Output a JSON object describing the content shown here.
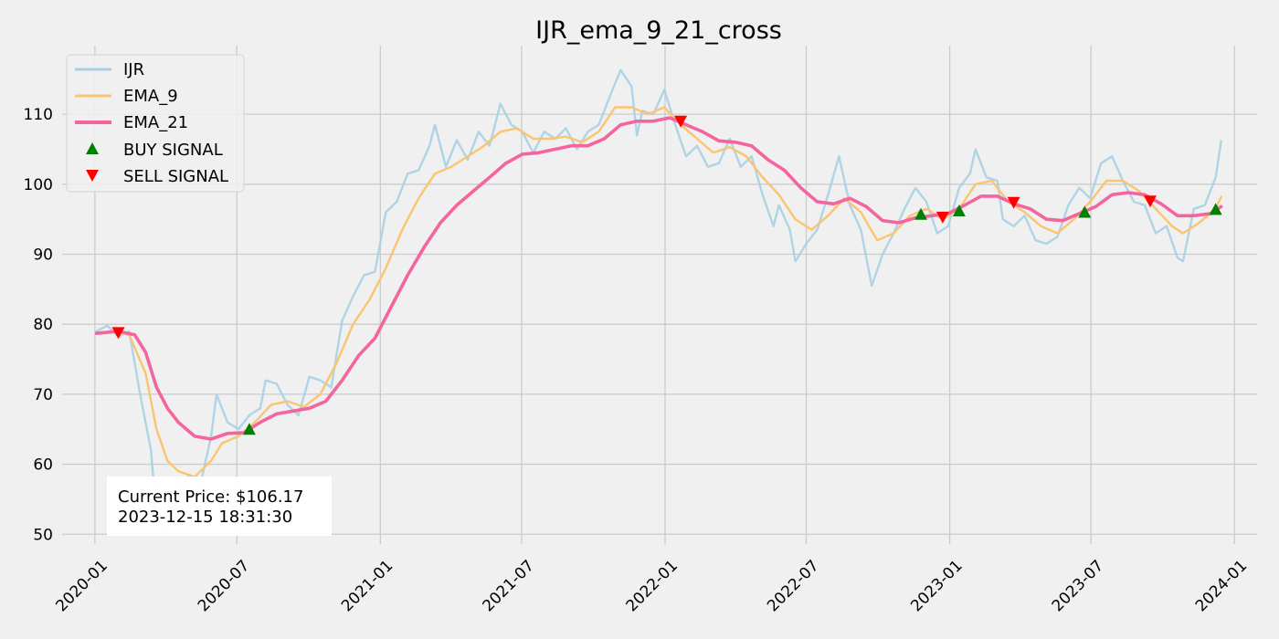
{
  "colors": {
    "background": "#f0f0f0",
    "grid": "#cbcbcb",
    "price": "#a6d0e4",
    "ema_short": "#fbc470",
    "ema_long": "#f4649e",
    "buy": "#008000",
    "sell": "#ff0000"
  },
  "chart_data": {
    "type": "line",
    "title": "IJR_ema_9_21_cross",
    "xlabel": "",
    "ylabel": "",
    "xlim": [
      "2019-11-20",
      "2024-01-30"
    ],
    "ylim": [
      48.6,
      119.8
    ],
    "x_ticks": [
      "2020-01",
      "2020-07",
      "2021-01",
      "2021-07",
      "2022-01",
      "2022-07",
      "2023-01",
      "2023-07",
      "2024-01"
    ],
    "y_ticks": [
      50,
      60,
      70,
      80,
      90,
      100,
      110
    ],
    "grid": true,
    "legend_position": "top-left",
    "series": [
      {
        "name": "IJR",
        "key": "price",
        "points": [
          [
            "2020-01-03",
            79.0
          ],
          [
            "2020-01-17",
            79.8
          ],
          [
            "2020-01-31",
            78.2
          ],
          [
            "2020-02-14",
            79.0
          ],
          [
            "2020-02-28",
            70.0
          ],
          [
            "2020-03-13",
            62.0
          ],
          [
            "2020-03-20",
            52.0
          ],
          [
            "2020-04-03",
            50.5
          ],
          [
            "2020-04-17",
            56.0
          ],
          [
            "2020-05-01",
            58.5
          ],
          [
            "2020-05-15",
            57.0
          ],
          [
            "2020-05-29",
            64.0
          ],
          [
            "2020-06-05",
            70.0
          ],
          [
            "2020-06-19",
            66.0
          ],
          [
            "2020-07-03",
            65.0
          ],
          [
            "2020-07-17",
            67.0
          ],
          [
            "2020-07-31",
            68.0
          ],
          [
            "2020-08-07",
            72.0
          ],
          [
            "2020-08-21",
            71.5
          ],
          [
            "2020-09-04",
            68.5
          ],
          [
            "2020-09-18",
            67.0
          ],
          [
            "2020-10-02",
            72.5
          ],
          [
            "2020-10-16",
            72.0
          ],
          [
            "2020-10-30",
            71.0
          ],
          [
            "2020-11-13",
            80.5
          ],
          [
            "2020-11-27",
            84.0
          ],
          [
            "2020-12-11",
            87.0
          ],
          [
            "2020-12-25",
            87.5
          ],
          [
            "2021-01-08",
            96.0
          ],
          [
            "2021-01-22",
            97.5
          ],
          [
            "2021-02-05",
            101.5
          ],
          [
            "2021-02-19",
            102.0
          ],
          [
            "2021-03-05",
            105.5
          ],
          [
            "2021-03-12",
            108.5
          ],
          [
            "2021-03-26",
            102.5
          ],
          [
            "2021-04-09",
            106.3
          ],
          [
            "2021-04-23",
            103.5
          ],
          [
            "2021-05-07",
            107.5
          ],
          [
            "2021-05-21",
            105.5
          ],
          [
            "2021-06-04",
            111.5
          ],
          [
            "2021-06-18",
            108.5
          ],
          [
            "2021-07-02",
            107.5
          ],
          [
            "2021-07-16",
            104.5
          ],
          [
            "2021-07-30",
            107.5
          ],
          [
            "2021-08-13",
            106.5
          ],
          [
            "2021-08-27",
            108.0
          ],
          [
            "2021-09-10",
            105.0
          ],
          [
            "2021-09-24",
            107.5
          ],
          [
            "2021-10-08",
            108.5
          ],
          [
            "2021-10-22",
            112.5
          ],
          [
            "2021-11-05",
            116.3
          ],
          [
            "2021-11-19",
            114.0
          ],
          [
            "2021-11-26",
            107.0
          ],
          [
            "2021-12-03",
            110.5
          ],
          [
            "2021-12-17",
            110.0
          ],
          [
            "2021-12-31",
            113.5
          ],
          [
            "2022-01-14",
            108.5
          ],
          [
            "2022-01-28",
            104.0
          ],
          [
            "2022-02-11",
            105.5
          ],
          [
            "2022-02-25",
            102.5
          ],
          [
            "2022-03-11",
            103.0
          ],
          [
            "2022-03-25",
            106.5
          ],
          [
            "2022-04-08",
            102.5
          ],
          [
            "2022-04-22",
            104.0
          ],
          [
            "2022-05-06",
            98.5
          ],
          [
            "2022-05-20",
            94.0
          ],
          [
            "2022-05-27",
            97.0
          ],
          [
            "2022-06-10",
            93.5
          ],
          [
            "2022-06-17",
            89.0
          ],
          [
            "2022-07-01",
            91.5
          ],
          [
            "2022-07-15",
            93.5
          ],
          [
            "2022-07-29",
            98.5
          ],
          [
            "2022-08-12",
            104.0
          ],
          [
            "2022-08-26",
            97.0
          ],
          [
            "2022-09-09",
            93.5
          ],
          [
            "2022-09-23",
            85.5
          ],
          [
            "2022-10-07",
            90.0
          ],
          [
            "2022-10-21",
            93.0
          ],
          [
            "2022-11-04",
            96.5
          ],
          [
            "2022-11-18",
            99.5
          ],
          [
            "2022-12-02",
            97.5
          ],
          [
            "2022-12-16",
            93.0
          ],
          [
            "2022-12-30",
            94.0
          ],
          [
            "2023-01-13",
            99.5
          ],
          [
            "2023-01-27",
            101.5
          ],
          [
            "2023-02-03",
            105.0
          ],
          [
            "2023-02-17",
            101.0
          ],
          [
            "2023-03-03",
            100.5
          ],
          [
            "2023-03-10",
            95.0
          ],
          [
            "2023-03-24",
            94.0
          ],
          [
            "2023-04-07",
            95.5
          ],
          [
            "2023-04-21",
            92.0
          ],
          [
            "2023-05-05",
            91.5
          ],
          [
            "2023-05-19",
            92.5
          ],
          [
            "2023-06-02",
            97.0
          ],
          [
            "2023-06-16",
            99.5
          ],
          [
            "2023-06-30",
            98.0
          ],
          [
            "2023-07-14",
            103.0
          ],
          [
            "2023-07-28",
            104.0
          ],
          [
            "2023-08-11",
            100.5
          ],
          [
            "2023-08-25",
            97.5
          ],
          [
            "2023-09-08",
            97.0
          ],
          [
            "2023-09-22",
            93.0
          ],
          [
            "2023-10-06",
            94.0
          ],
          [
            "2023-10-20",
            89.5
          ],
          [
            "2023-10-27",
            89.0
          ],
          [
            "2023-11-10",
            96.5
          ],
          [
            "2023-11-24",
            97.0
          ],
          [
            "2023-12-08",
            101.0
          ],
          [
            "2023-12-15",
            106.2
          ]
        ]
      },
      {
        "name": "EMA_9",
        "key": "ema_short",
        "points": [
          [
            "2020-01-03",
            78.8
          ],
          [
            "2020-01-24",
            79.0
          ],
          [
            "2020-02-14",
            78.5
          ],
          [
            "2020-03-06",
            73.0
          ],
          [
            "2020-03-20",
            65.0
          ],
          [
            "2020-04-03",
            60.5
          ],
          [
            "2020-04-17",
            59.0
          ],
          [
            "2020-05-08",
            58.2
          ],
          [
            "2020-05-29",
            60.5
          ],
          [
            "2020-06-12",
            63.0
          ],
          [
            "2020-07-03",
            64.0
          ],
          [
            "2020-07-24",
            66.0
          ],
          [
            "2020-08-14",
            68.5
          ],
          [
            "2020-09-04",
            69.0
          ],
          [
            "2020-09-25",
            68.2
          ],
          [
            "2020-10-16",
            70.0
          ],
          [
            "2020-11-06",
            74.5
          ],
          [
            "2020-11-27",
            80.0
          ],
          [
            "2020-12-18",
            83.5
          ],
          [
            "2021-01-08",
            88.0
          ],
          [
            "2021-01-29",
            93.5
          ],
          [
            "2021-02-19",
            98.0
          ],
          [
            "2021-03-12",
            101.5
          ],
          [
            "2021-04-02",
            102.5
          ],
          [
            "2021-04-23",
            104.0
          ],
          [
            "2021-05-14",
            105.5
          ],
          [
            "2021-06-04",
            107.5
          ],
          [
            "2021-06-25",
            108.0
          ],
          [
            "2021-07-16",
            106.5
          ],
          [
            "2021-08-06",
            106.5
          ],
          [
            "2021-08-27",
            106.8
          ],
          [
            "2021-09-17",
            106.0
          ],
          [
            "2021-10-08",
            107.5
          ],
          [
            "2021-10-29",
            111.0
          ],
          [
            "2021-11-19",
            111.0
          ],
          [
            "2021-12-10",
            110.0
          ],
          [
            "2021-12-31",
            111.0
          ],
          [
            "2022-01-21",
            108.5
          ],
          [
            "2022-02-11",
            106.5
          ],
          [
            "2022-03-04",
            104.5
          ],
          [
            "2022-03-25",
            105.3
          ],
          [
            "2022-04-15",
            104.0
          ],
          [
            "2022-05-06",
            101.0
          ],
          [
            "2022-05-27",
            98.5
          ],
          [
            "2022-06-17",
            95.0
          ],
          [
            "2022-07-08",
            93.5
          ],
          [
            "2022-07-29",
            95.5
          ],
          [
            "2022-08-19",
            98.0
          ],
          [
            "2022-09-09",
            96.0
          ],
          [
            "2022-09-30",
            92.0
          ],
          [
            "2022-10-21",
            93.0
          ],
          [
            "2022-11-11",
            95.5
          ],
          [
            "2022-12-02",
            96.5
          ],
          [
            "2022-12-23",
            95.0
          ],
          [
            "2023-01-13",
            96.5
          ],
          [
            "2023-02-03",
            100.0
          ],
          [
            "2023-02-24",
            100.5
          ],
          [
            "2023-03-17",
            97.5
          ],
          [
            "2023-04-07",
            96.0
          ],
          [
            "2023-04-28",
            94.0
          ],
          [
            "2023-05-19",
            93.0
          ],
          [
            "2023-06-09",
            95.0
          ],
          [
            "2023-06-30",
            97.5
          ],
          [
            "2023-07-21",
            100.5
          ],
          [
            "2023-08-11",
            100.5
          ],
          [
            "2023-09-01",
            99.0
          ],
          [
            "2023-09-22",
            96.5
          ],
          [
            "2023-10-13",
            94.0
          ],
          [
            "2023-10-27",
            93.0
          ],
          [
            "2023-11-17",
            94.5
          ],
          [
            "2023-12-08",
            96.5
          ],
          [
            "2023-12-15",
            98.2
          ]
        ]
      },
      {
        "name": "EMA_21",
        "key": "ema_long",
        "points": [
          [
            "2020-01-03",
            78.7
          ],
          [
            "2020-01-31",
            79.0
          ],
          [
            "2020-02-21",
            78.5
          ],
          [
            "2020-03-06",
            76.0
          ],
          [
            "2020-03-20",
            71.0
          ],
          [
            "2020-04-03",
            68.0
          ],
          [
            "2020-04-17",
            66.0
          ],
          [
            "2020-05-08",
            64.0
          ],
          [
            "2020-05-29",
            63.6
          ],
          [
            "2020-06-19",
            64.4
          ],
          [
            "2020-07-10",
            64.5
          ],
          [
            "2020-07-31",
            66.0
          ],
          [
            "2020-08-21",
            67.2
          ],
          [
            "2020-09-11",
            67.6
          ],
          [
            "2020-10-02",
            68.0
          ],
          [
            "2020-10-23",
            69.0
          ],
          [
            "2020-11-13",
            72.0
          ],
          [
            "2020-12-04",
            75.5
          ],
          [
            "2020-12-25",
            78.0
          ],
          [
            "2021-01-15",
            82.5
          ],
          [
            "2021-02-05",
            87.0
          ],
          [
            "2021-02-26",
            91.0
          ],
          [
            "2021-03-19",
            94.5
          ],
          [
            "2021-04-09",
            97.0
          ],
          [
            "2021-04-30",
            99.0
          ],
          [
            "2021-05-21",
            101.0
          ],
          [
            "2021-06-11",
            103.0
          ],
          [
            "2021-07-02",
            104.3
          ],
          [
            "2021-07-23",
            104.5
          ],
          [
            "2021-08-13",
            105.0
          ],
          [
            "2021-09-03",
            105.5
          ],
          [
            "2021-09-24",
            105.5
          ],
          [
            "2021-10-15",
            106.5
          ],
          [
            "2021-11-05",
            108.5
          ],
          [
            "2021-11-26",
            109.0
          ],
          [
            "2021-12-17",
            109.0
          ],
          [
            "2022-01-07",
            109.5
          ],
          [
            "2022-01-28",
            108.5
          ],
          [
            "2022-02-18",
            107.5
          ],
          [
            "2022-03-11",
            106.2
          ],
          [
            "2022-04-01",
            106.0
          ],
          [
            "2022-04-22",
            105.5
          ],
          [
            "2022-05-13",
            103.5
          ],
          [
            "2022-06-03",
            102.0
          ],
          [
            "2022-06-24",
            99.5
          ],
          [
            "2022-07-15",
            97.5
          ],
          [
            "2022-08-05",
            97.2
          ],
          [
            "2022-08-26",
            98.0
          ],
          [
            "2022-09-16",
            96.8
          ],
          [
            "2022-10-07",
            94.8
          ],
          [
            "2022-10-28",
            94.5
          ],
          [
            "2022-11-18",
            95.2
          ],
          [
            "2022-12-09",
            95.5
          ],
          [
            "2022-12-30",
            95.8
          ],
          [
            "2023-01-20",
            97.0
          ],
          [
            "2023-02-10",
            98.3
          ],
          [
            "2023-03-03",
            98.3
          ],
          [
            "2023-03-24",
            97.2
          ],
          [
            "2023-04-14",
            96.5
          ],
          [
            "2023-05-05",
            95.0
          ],
          [
            "2023-05-26",
            94.8
          ],
          [
            "2023-06-16",
            95.8
          ],
          [
            "2023-07-07",
            96.8
          ],
          [
            "2023-07-28",
            98.5
          ],
          [
            "2023-08-18",
            98.8
          ],
          [
            "2023-09-08",
            98.5
          ],
          [
            "2023-09-29",
            97.2
          ],
          [
            "2023-10-20",
            95.5
          ],
          [
            "2023-11-10",
            95.5
          ],
          [
            "2023-12-01",
            95.8
          ],
          [
            "2023-12-15",
            96.8
          ]
        ]
      }
    ],
    "signals": [
      {
        "name": "BUY SIGNAL",
        "type": "buy",
        "points": [
          [
            "2020-07-17",
            65.0
          ],
          [
            "2022-11-25",
            95.7
          ],
          [
            "2023-01-13",
            96.2
          ],
          [
            "2023-06-23",
            96.0
          ],
          [
            "2023-12-08",
            96.4
          ]
        ]
      },
      {
        "name": "SELL SIGNAL",
        "type": "sell",
        "points": [
          [
            "2020-01-31",
            78.8
          ],
          [
            "2022-01-21",
            109.0
          ],
          [
            "2022-12-23",
            95.3
          ],
          [
            "2023-03-24",
            97.4
          ],
          [
            "2023-09-15",
            97.6
          ]
        ]
      }
    ]
  },
  "info_box": {
    "line1": "Current Price: $106.17",
    "line2": "2023-12-15 18:31:30"
  }
}
